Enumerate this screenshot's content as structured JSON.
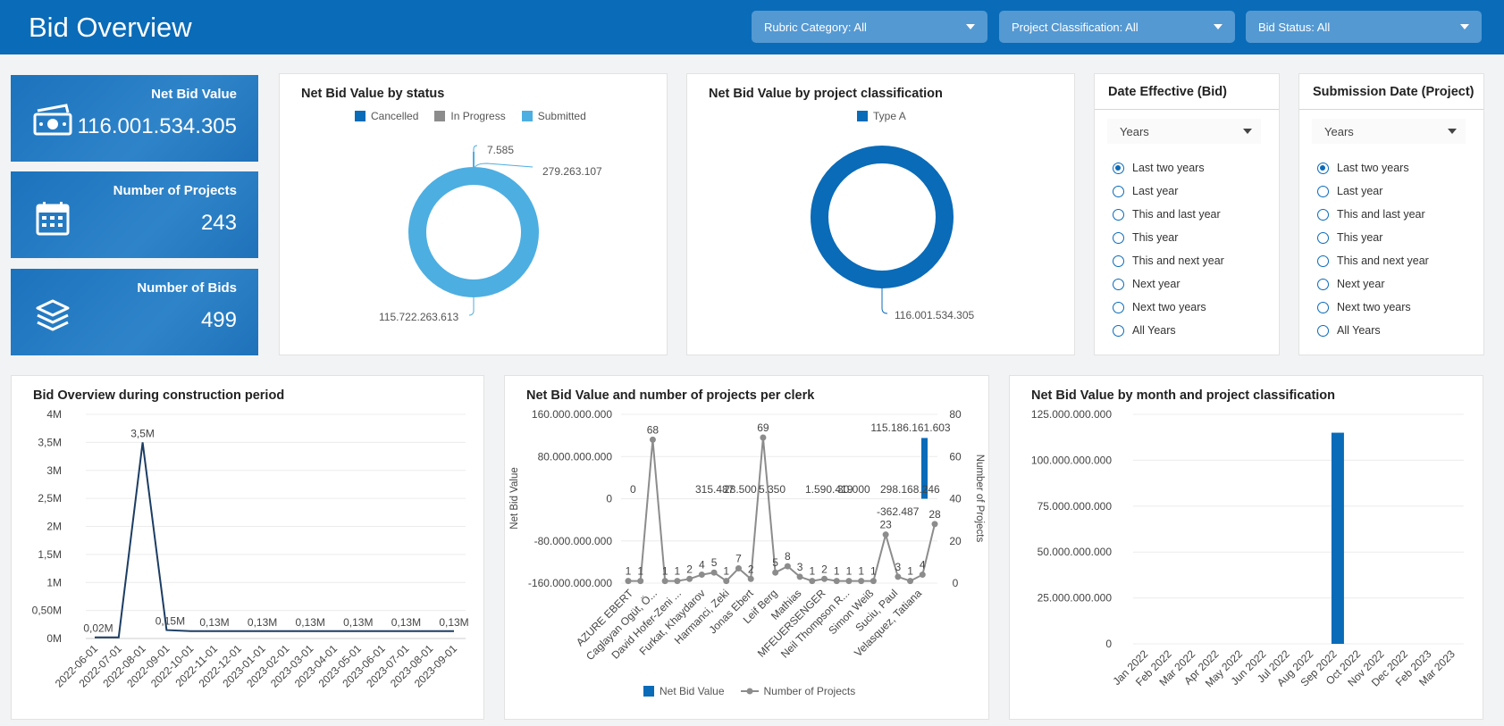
{
  "header": {
    "title": "Bid Overview",
    "filters": [
      {
        "label": "Rubric Category: All"
      },
      {
        "label": "Project Classification: All"
      },
      {
        "label": "Bid Status: All"
      }
    ]
  },
  "kpis": [
    {
      "label": "Net Bid Value",
      "value": "116.001.534.305",
      "icon": "money-icon"
    },
    {
      "label": "Number of Projects",
      "value": "243",
      "icon": "calendar-icon"
    },
    {
      "label": "Number of Bids",
      "value": "499",
      "icon": "layers-icon"
    }
  ],
  "colors": {
    "primary": "#0a6bb8",
    "grey": "#8c8c8c",
    "light_blue": "#4daee1",
    "dark_navy": "#1c3d63"
  },
  "status_chart": {
    "title": "Net Bid Value by status",
    "legend": [
      "Cancelled",
      "In Progress",
      "Submitted"
    ],
    "labels": {
      "cancelled": "7.585",
      "in_progress": "279.263.107",
      "submitted": "115.722.263.613"
    }
  },
  "classification_chart": {
    "title": "Net Bid Value by project classification",
    "legend": [
      "Type A"
    ],
    "value_label": "116.001.534.305"
  },
  "date_panels": [
    {
      "title": "Date Effective (Bid)",
      "select": "Years",
      "options": [
        "Last two years",
        "Last year",
        "This and last year",
        "This year",
        "This and next year",
        "Next year",
        "Next two years",
        "All Years"
      ],
      "selected": 0
    },
    {
      "title": "Submission Date (Project)",
      "select": "Years",
      "options": [
        "Last two years",
        "Last year",
        "This and last year",
        "This year",
        "This and next year",
        "Next year",
        "Next two years",
        "All Years"
      ],
      "selected": 0
    }
  ],
  "construction_chart": {
    "title": "Bid Overview during construction period",
    "y_ticks": [
      "4M",
      "3,5M",
      "3M",
      "2,5M",
      "2M",
      "1,5M",
      "1M",
      "0,50M",
      "0M"
    ],
    "x_labels": [
      "2022-06-01",
      "2022-07-01",
      "2022-08-01",
      "2022-09-01",
      "2022-10-01",
      "2022-11-01",
      "2022-12-01",
      "2023-01-01",
      "2023-02-01",
      "2023-03-01",
      "2023-04-01",
      "2023-05-01",
      "2023-06-01",
      "2023-07-01",
      "2023-08-01",
      "2023-09-01"
    ],
    "point_labels": [
      "0,02M",
      "3,5M",
      "0,15M",
      "0,13M",
      "0,13M",
      "0,13M",
      "0,13M",
      "0,13M",
      "0,13M"
    ]
  },
  "clerk_chart": {
    "title": "Net Bid Value and number of projects per clerk",
    "y_left_ticks": [
      "160.000.000.000",
      "80.000.000.000",
      "0",
      "-80.000.000.000",
      "-160.000.000.000"
    ],
    "y_right_ticks": [
      "80",
      "60",
      "40",
      "20",
      "0"
    ],
    "y_left_label": "Net Bid Value",
    "y_right_label": "Number of Projects",
    "x_labels": [
      "AZURE EBERT",
      "Caglayan Ogüt, Ö...",
      "David Hofer-Zeni ...",
      "Furkat, Khaydarov",
      "Harmanci, Zeki",
      "Jonas Ebert",
      "Leif Berg",
      "Mathias",
      "MFEUERSENGER",
      "Neil Thompson R...",
      "Simon Weiß",
      "Suciu, Paul",
      "Velasquez, Tatiana"
    ],
    "projects": [
      1,
      1,
      68,
      1,
      1,
      2,
      4,
      5,
      1,
      7,
      2,
      69,
      5,
      8,
      3,
      1,
      2,
      1,
      1,
      1,
      1,
      23,
      3,
      1,
      4,
      28
    ],
    "value_labels": [
      "0",
      "315.487",
      "28.500",
      "5.350",
      "1.590.419",
      "30.000",
      "298.168.246",
      "-362.487",
      "115.186.161.603"
    ],
    "legend": [
      "Net Bid Value",
      "Number of Projects"
    ]
  },
  "month_chart": {
    "title": "Net Bid Value by month and project classification",
    "y_ticks": [
      "125.000.000.000",
      "100.000.000.000",
      "75.000.000.000",
      "50.000.000.000",
      "25.000.000.000",
      "0"
    ],
    "x_labels": [
      "Jan 2022",
      "Feb 2022",
      "Mar 2022",
      "Apr 2022",
      "May 2022",
      "Jun 2022",
      "Jul 2022",
      "Aug 2022",
      "Sep 2022",
      "Oct 2022",
      "Nov 2022",
      "Dec 2022",
      "Feb 2023",
      "Mar 2023"
    ]
  },
  "chart_data": [
    {
      "type": "pie",
      "title": "Net Bid Value by status",
      "categories": [
        "Cancelled",
        "In Progress",
        "Submitted"
      ],
      "values": [
        7585,
        279263107,
        115722263613
      ],
      "legend_placement": "top"
    },
    {
      "type": "pie",
      "title": "Net Bid Value by project classification",
      "categories": [
        "Type A"
      ],
      "values": [
        116001534305
      ],
      "legend_placement": "top"
    },
    {
      "type": "line",
      "title": "Bid Overview during construction period",
      "x": [
        "2022-06-01",
        "2022-07-01",
        "2022-08-01",
        "2022-09-01",
        "2022-10-01",
        "2022-11-01",
        "2022-12-01",
        "2023-01-01",
        "2023-02-01",
        "2023-03-01",
        "2023-04-01",
        "2023-05-01",
        "2023-06-01",
        "2023-07-01",
        "2023-08-01",
        "2023-09-01"
      ],
      "values": [
        0.02,
        0.02,
        3.5,
        0.15,
        0.13,
        0.13,
        0.13,
        0.13,
        0.13,
        0.13,
        0.13,
        0.13,
        0.13,
        0.13,
        0.13,
        0.13
      ],
      "ylim": [
        0,
        4
      ],
      "grid": true
    },
    {
      "type": "line",
      "title": "Net Bid Value and number of projects per clerk",
      "series": [
        {
          "name": "Number of Projects",
          "values": [
            1,
            1,
            68,
            1,
            1,
            2,
            4,
            5,
            1,
            7,
            2,
            69,
            5,
            8,
            3,
            1,
            2,
            1,
            1,
            1,
            1,
            23,
            3,
            1,
            4,
            28
          ]
        },
        {
          "name": "Net Bid Value",
          "values": [
            115186161603
          ]
        }
      ],
      "ylim": [
        -160000000000,
        160000000000
      ],
      "y2lim": [
        0,
        80
      ],
      "legend_placement": "bottom"
    },
    {
      "type": "bar",
      "title": "Net Bid Value by month and project classification",
      "categories": [
        "Jan 2022",
        "Feb 2022",
        "Mar 2022",
        "Apr 2022",
        "May 2022",
        "Jun 2022",
        "Jul 2022",
        "Aug 2022",
        "Sep 2022",
        "Oct 2022",
        "Nov 2022",
        "Dec 2022",
        "Feb 2023",
        "Mar 2023"
      ],
      "values": [
        0,
        0,
        0,
        0,
        0,
        0,
        0,
        0,
        115000000000,
        0,
        0,
        0,
        0,
        0
      ],
      "ylim": [
        0,
        125000000000
      ]
    }
  ]
}
